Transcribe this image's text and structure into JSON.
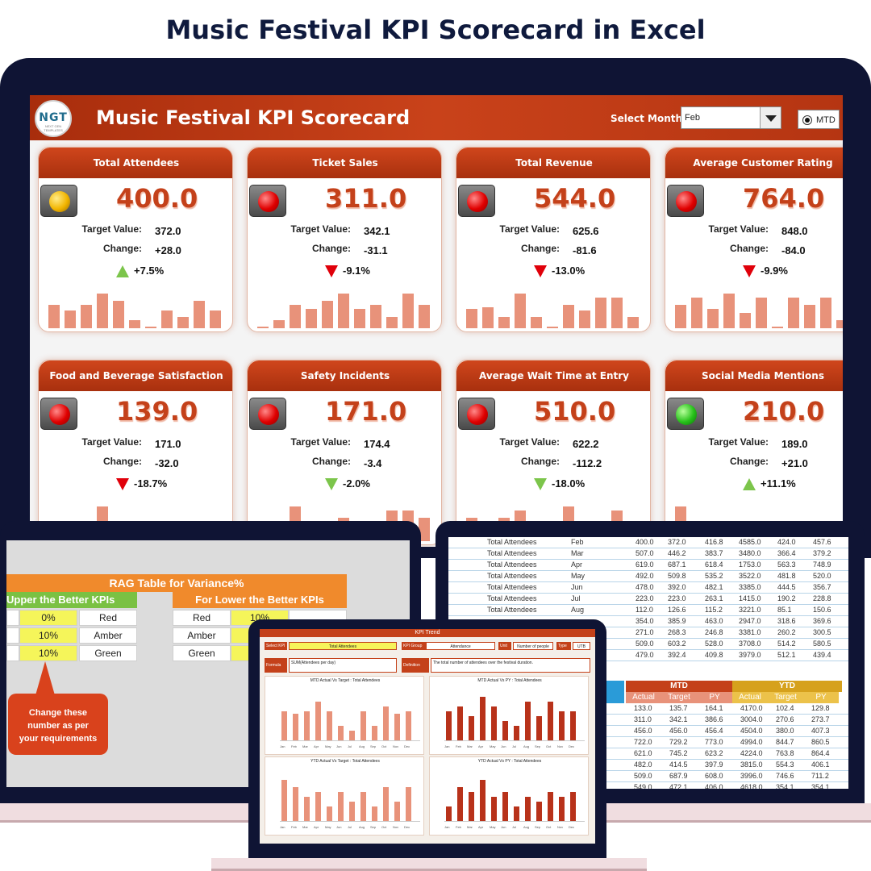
{
  "page_title": "Music Festival KPI Scorecard in Excel",
  "banner": {
    "logo_text": "NGT",
    "logo_sub": "NEXT GEN TEMPLATES",
    "title": "Music Festival KPI Scorecard",
    "select_label": "Select Month",
    "selected_month": "Feb",
    "mtd_label": "MTD"
  },
  "cards": [
    {
      "title": "Total Attendees",
      "value": "400.0",
      "target_label": "Target Value:",
      "target": "372.0",
      "change_label": "Change:",
      "change": "+28.0",
      "pct": "+7.5%",
      "trend": "up",
      "lamp": "amber",
      "spark": [
        0.6,
        0.45,
        0.6,
        0.9,
        0.7,
        0.2,
        0.0,
        0.45,
        0.3,
        0.7,
        0.45
      ]
    },
    {
      "title": "Ticket Sales",
      "value": "311.0",
      "target_label": "Target Value:",
      "target": "342.1",
      "change_label": "Change:",
      "change": "-31.1",
      "pct": "-9.1%",
      "trend": "down-red",
      "lamp": "red",
      "spark": [
        0.0,
        0.2,
        0.6,
        0.5,
        0.7,
        0.9,
        0.5,
        0.6,
        0.3,
        0.9,
        0.6
      ]
    },
    {
      "title": "Total Revenue",
      "value": "544.0",
      "target_label": "Target Value:",
      "target": "625.6",
      "change_label": "Change:",
      "change": "-81.6",
      "pct": "-13.0%",
      "trend": "down-red",
      "lamp": "red",
      "spark": [
        0.5,
        0.55,
        0.3,
        0.9,
        0.3,
        0.0,
        0.6,
        0.45,
        0.8,
        0.8,
        0.3
      ]
    },
    {
      "title": "Average Customer Rating",
      "value": "764.0",
      "target_label": "Target Value:",
      "target": "848.0",
      "change_label": "Change:",
      "change": "-84.0",
      "pct": "-9.9%",
      "trend": "down-red",
      "lamp": "red",
      "spark": [
        0.6,
        0.8,
        0.5,
        0.9,
        0.4,
        0.8,
        0.0,
        0.8,
        0.6,
        0.8,
        0.2
      ]
    },
    {
      "title": "Food and Beverage Satisfaction",
      "value": "139.0",
      "target_label": "Target Value:",
      "target": "171.0",
      "change_label": "Change:",
      "change": "-32.0",
      "pct": "-18.7%",
      "trend": "down-red",
      "lamp": "red",
      "spark": [
        0.3,
        0.3,
        0.2,
        0.9,
        0.4,
        0.2,
        0.4,
        0.4,
        0.2,
        0.5,
        0.5
      ]
    },
    {
      "title": "Safety Incidents",
      "value": "171.0",
      "target_label": "Target Value:",
      "target": "174.4",
      "change_label": "Change:",
      "change": "-3.4",
      "pct": "-2.0%",
      "trend": "down-green",
      "lamp": "red",
      "spark": [
        0.2,
        0.4,
        0.9,
        0.5,
        0.2,
        0.6,
        0.3,
        0.2,
        0.8,
        0.8,
        0.6
      ]
    },
    {
      "title": "Average Wait Time at Entry",
      "value": "510.0",
      "target_label": "Target Value:",
      "target": "622.2",
      "change_label": "Change:",
      "change": "-112.2",
      "pct": "-18.0%",
      "trend": "down-green",
      "lamp": "red",
      "spark": [
        0.6,
        0.2,
        0.6,
        0.8,
        0.3,
        0.5,
        0.9,
        0.5,
        0.3,
        0.8,
        0.5
      ]
    },
    {
      "title": "Social Media Mentions",
      "value": "210.0",
      "target_label": "Target Value:",
      "target": "189.0",
      "change_label": "Change:",
      "change": "+21.0",
      "pct": "+11.1%",
      "trend": "up",
      "lamp": "green",
      "spark": [
        0.9,
        0.2,
        0.5,
        0.5,
        0.2,
        0.5,
        0.3,
        0.2,
        0.5,
        0.3,
        0.4
      ]
    }
  ],
  "rag": {
    "title": "RAG Table for Variance%",
    "upper_title": "Upper the Better KPIs",
    "lower_title": "For Lower the Better KPIs",
    "upper_rows": [
      [
        "0%",
        "Red"
      ],
      [
        "10%",
        "Amber"
      ],
      [
        "10%",
        "Green"
      ]
    ],
    "lower_rows": [
      [
        "Red",
        "10%"
      ],
      [
        "Amber",
        ""
      ],
      [
        "Green",
        ""
      ]
    ],
    "callout": [
      "Change these",
      "number as per",
      "your requirements"
    ]
  },
  "data_table": {
    "rows": [
      [
        "Total Attendees",
        "Feb",
        "400.0",
        "372.0",
        "416.8",
        "4585.0",
        "424.0",
        "457.6"
      ],
      [
        "Total Attendees",
        "Mar",
        "507.0",
        "446.2",
        "383.7",
        "3480.0",
        "366.4",
        "379.2"
      ],
      [
        "Total Attendees",
        "Apr",
        "619.0",
        "687.1",
        "618.4",
        "1753.0",
        "563.3",
        "748.9"
      ],
      [
        "Total Attendees",
        "May",
        "492.0",
        "509.8",
        "535.2",
        "3522.0",
        "481.8",
        "520.0"
      ],
      [
        "Total Attendees",
        "Jun",
        "478.0",
        "392.0",
        "482.1",
        "3385.0",
        "444.5",
        "356.7"
      ],
      [
        "Total Attendees",
        "Jul",
        "223.0",
        "223.0",
        "263.1",
        "1415.0",
        "190.2",
        "228.8"
      ],
      [
        "Total Attendees",
        "Aug",
        "112.0",
        "126.6",
        "115.2",
        "3221.0",
        "85.1",
        "150.6"
      ],
      [
        "",
        "",
        "354.0",
        "385.9",
        "463.0",
        "2947.0",
        "318.6",
        "369.6"
      ],
      [
        "",
        "",
        "271.0",
        "268.3",
        "246.8",
        "3381.0",
        "260.2",
        "300.5"
      ],
      [
        "",
        "",
        "509.0",
        "603.2",
        "528.0",
        "3708.0",
        "514.2",
        "580.5"
      ],
      [
        "",
        "",
        "479.0",
        "392.4",
        "409.8",
        "3979.0",
        "512.1",
        "439.4"
      ]
    ],
    "mtd_label": "MTD",
    "ytd_label": "YTD",
    "sub_headers": [
      "Actual",
      "Target",
      "PY",
      "Actual",
      "Target",
      "PY"
    ],
    "rows2": [
      [
        "133.0",
        "135.7",
        "164.1",
        "4170.0",
        "102.4",
        "129.8"
      ],
      [
        "311.0",
        "342.1",
        "386.6",
        "3004.0",
        "270.6",
        "273.7"
      ],
      [
        "456.0",
        "456.0",
        "456.4",
        "4504.0",
        "380.0",
        "407.3"
      ],
      [
        "722.0",
        "729.2",
        "773.0",
        "4994.0",
        "844.7",
        "860.5"
      ],
      [
        "621.0",
        "745.2",
        "623.2",
        "4224.0",
        "763.8",
        "864.4"
      ],
      [
        "482.0",
        "414.5",
        "397.9",
        "3815.0",
        "554.3",
        "406.1"
      ],
      [
        "509.0",
        "687.9",
        "608.0",
        "3996.0",
        "746.6",
        "711.2"
      ],
      [
        "549.0",
        "472.1",
        "406.0",
        "4618.0",
        "354.1",
        "354.1"
      ]
    ]
  },
  "front": {
    "title": "KPI Trend",
    "select_kpi_label": "Select KPI",
    "select_kpi": "Total Attendees",
    "group_label": "KPI Group",
    "group": "Attendance",
    "unit_label": "Unit",
    "unit": "Number of people",
    "type_label": "Type",
    "type": "UTB",
    "formula_label": "Formula",
    "formula": "SUM(Attendees per day)",
    "definition_label": "Definition",
    "definition": "The total number of attendees over the festival duration.",
    "panels": [
      {
        "title": "MTD Actual Vs Target : Total Attendees",
        "values": [
          0.6,
          0.55,
          0.6,
          0.8,
          0.6,
          0.3,
          0.2,
          0.6,
          0.3,
          0.7,
          0.55,
          0.6
        ],
        "color": "#e8927a"
      },
      {
        "title": "MTD Actual Vs PY : Total Attendees",
        "values": [
          0.6,
          0.7,
          0.5,
          0.9,
          0.7,
          0.4,
          0.3,
          0.8,
          0.5,
          0.8,
          0.6,
          0.6
        ],
        "color": "#b8321a"
      },
      {
        "title": "YTD Actual Vs Target : Total Attendees",
        "values": [
          0.85,
          0.7,
          0.5,
          0.6,
          0.3,
          0.6,
          0.4,
          0.6,
          0.3,
          0.7,
          0.4,
          0.7
        ],
        "color": "#e8927a"
      },
      {
        "title": "YTD Actual Vs PY : Total Attendees",
        "values": [
          0.3,
          0.7,
          0.6,
          0.85,
          0.5,
          0.6,
          0.3,
          0.5,
          0.4,
          0.6,
          0.5,
          0.6
        ],
        "color": "#b8321a"
      }
    ],
    "months": [
      "Jan",
      "Feb",
      "Mar",
      "Apr",
      "May",
      "Jun",
      "Jul",
      "Aug",
      "Sep",
      "Oct",
      "Nov",
      "Dec"
    ]
  },
  "colors": {
    "accent": "#c4411a",
    "banner": "#a82d0c",
    "frame": "#0f1434"
  }
}
